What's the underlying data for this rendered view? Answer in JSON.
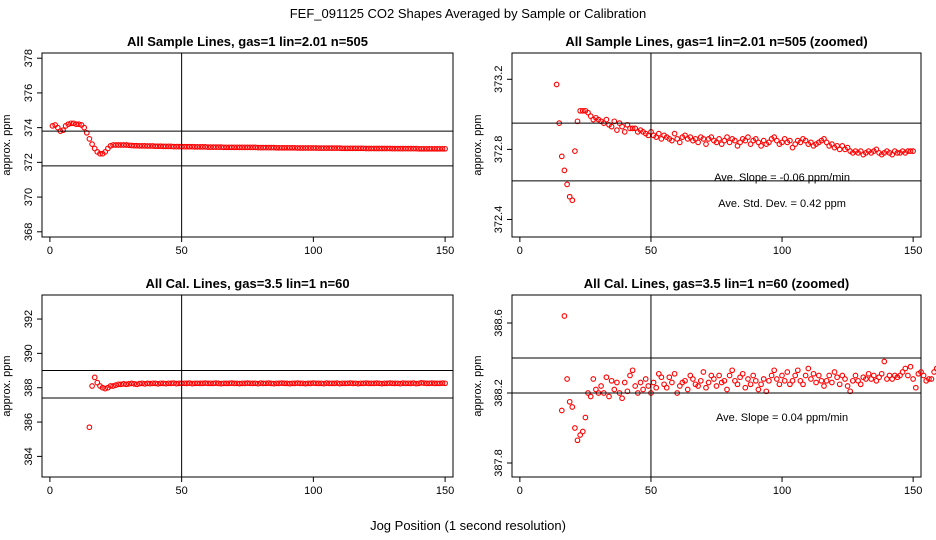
{
  "page": {
    "title": "FEF_091125  CO2 Shapes Averaged by Sample or Calibration",
    "xlabel": "Jog Position (1 second resolution)"
  },
  "colors": {
    "points": "#ff0000",
    "lines": "#000000"
  },
  "chart_data": [
    {
      "type": "scatter",
      "title": "All Sample Lines, gas=1 lin=2.01 n=505",
      "ylabel": "approx. ppm",
      "xlim": [
        -3,
        153
      ],
      "ylim": [
        367.7,
        378.3
      ],
      "x_ticks": [
        0,
        50,
        100,
        150
      ],
      "x_tick_labels": [
        "0",
        "50",
        "100",
        "150"
      ],
      "y_ticks": [
        368,
        370,
        372,
        374,
        376,
        378
      ],
      "y_tick_labels": [
        "368",
        "370",
        "372",
        "374",
        "376",
        "378"
      ],
      "vline_x": 50,
      "hlines_y": [
        373.8,
        371.8
      ],
      "annotations": [],
      "points": {
        "x_start": 1,
        "values": [
          374.1,
          374.15,
          374.0,
          373.8,
          373.85,
          374.1,
          374.2,
          374.25,
          374.25,
          374.2,
          374.2,
          374.15,
          374.0,
          373.7,
          373.35,
          373.05,
          372.8,
          372.6,
          372.5,
          372.5,
          372.6,
          372.8,
          372.95,
          373.0,
          373.0,
          373.0,
          373.0,
          373.0,
          373.0,
          372.98,
          372.97,
          372.96,
          372.96,
          372.95,
          372.95,
          372.95,
          372.94,
          372.94,
          372.94,
          372.93,
          372.93,
          372.93,
          372.92,
          372.92,
          372.92,
          372.92,
          372.91,
          372.91,
          372.91,
          372.91,
          372.9,
          372.9,
          372.9,
          372.9,
          372.89,
          372.89,
          372.89,
          372.89,
          372.89,
          372.88,
          372.88,
          372.88,
          372.88,
          372.88,
          372.88,
          372.87,
          372.87,
          372.87,
          372.87,
          372.87,
          372.87,
          372.86,
          372.86,
          372.86,
          372.86,
          372.86,
          372.86,
          372.86,
          372.85,
          372.85,
          372.85,
          372.85,
          372.85,
          372.85,
          372.85,
          372.84,
          372.84,
          372.84,
          372.84,
          372.84,
          372.84,
          372.84,
          372.84,
          372.83,
          372.83,
          372.83,
          372.83,
          372.83,
          372.83,
          372.83,
          372.83,
          372.82,
          372.82,
          372.82,
          372.82,
          372.82,
          372.82,
          372.82,
          372.82,
          372.82,
          372.81,
          372.81,
          372.81,
          372.81,
          372.81,
          372.81,
          372.81,
          372.81,
          372.81,
          372.8,
          372.8,
          372.8,
          372.8,
          372.8,
          372.8,
          372.8,
          372.8,
          372.8,
          372.8,
          372.79,
          372.79,
          372.79,
          372.79,
          372.79,
          372.79,
          372.79,
          372.79,
          372.79,
          372.79,
          372.78,
          372.78,
          372.78,
          372.78,
          372.78,
          372.78,
          372.78,
          372.78,
          372.78,
          372.78,
          372.78
        ]
      }
    },
    {
      "type": "scatter",
      "title": "All Sample Lines, gas=1 lin=2.01 n=505 (zoomed)",
      "ylabel": "approx. ppm",
      "xlim": [
        -3,
        153
      ],
      "ylim": [
        372.3,
        373.35
      ],
      "x_ticks": [
        0,
        50,
        100,
        150
      ],
      "x_tick_labels": [
        "0",
        "50",
        "100",
        "150"
      ],
      "y_ticks": [
        372.4,
        372.8,
        373.2
      ],
      "y_tick_labels": [
        "372.4",
        "372.8",
        "373.2"
      ],
      "vline_x": 50,
      "hlines_y": [
        372.95,
        372.62
      ],
      "annotations": [
        {
          "text": "Ave. Slope =  -0.06  ppm/min",
          "x": 100,
          "y": 372.62
        },
        {
          "text": "Ave. Std. Dev. =  0.42  ppm",
          "x": 100,
          "y": 372.47
        }
      ],
      "points": {
        "x_start": 14,
        "values": [
          373.17,
          372.95,
          372.76,
          372.68,
          372.6,
          372.53,
          372.51,
          372.79,
          372.96,
          373.02,
          373.02,
          373.02,
          373.01,
          372.99,
          372.97,
          372.98,
          372.97,
          372.96,
          372.95,
          372.97,
          372.94,
          372.93,
          372.96,
          372.91,
          372.95,
          372.93,
          372.9,
          372.94,
          372.92,
          372.92,
          372.92,
          372.9,
          372.91,
          372.9,
          372.89,
          372.88,
          372.9,
          372.88,
          372.87,
          372.89,
          372.86,
          372.88,
          372.87,
          372.86,
          372.85,
          372.89,
          372.86,
          372.84,
          372.87,
          372.88,
          372.86,
          372.87,
          372.85,
          372.86,
          372.84,
          372.87,
          372.86,
          372.83,
          372.86,
          372.87,
          372.85,
          372.84,
          372.86,
          372.83,
          372.85,
          372.87,
          372.84,
          372.86,
          372.85,
          372.82,
          372.84,
          372.86,
          372.85,
          372.87,
          372.83,
          372.85,
          372.86,
          372.84,
          372.82,
          372.85,
          372.83,
          372.84,
          372.86,
          372.87,
          372.85,
          372.83,
          372.84,
          372.86,
          372.84,
          372.85,
          372.81,
          372.83,
          372.85,
          372.84,
          372.86,
          372.85,
          372.83,
          372.84,
          372.82,
          372.83,
          372.84,
          372.85,
          372.86,
          372.84,
          372.82,
          372.83,
          372.81,
          372.82,
          372.8,
          372.82,
          372.8,
          372.81,
          372.79,
          372.78,
          372.79,
          372.78,
          372.79,
          372.77,
          372.78,
          372.79,
          372.78,
          372.79,
          372.8,
          372.78,
          372.77,
          372.78,
          372.79,
          372.78,
          372.77,
          372.79,
          372.78,
          372.78,
          372.79,
          372.78,
          372.79,
          372.79,
          372.79
        ]
      }
    },
    {
      "type": "scatter",
      "title": "All Cal. Lines, gas=3.5 lin=1 n=60",
      "ylabel": "approx. ppm",
      "xlim": [
        -3,
        153
      ],
      "ylim": [
        382.8,
        393.4
      ],
      "x_ticks": [
        0,
        50,
        100,
        150
      ],
      "x_tick_labels": [
        "0",
        "50",
        "100",
        "150"
      ],
      "y_ticks": [
        384,
        386,
        388,
        390,
        392
      ],
      "y_tick_labels": [
        "384",
        "386",
        "388",
        "390",
        "392"
      ],
      "vline_x": 50,
      "hlines_y": [
        389.0,
        387.4
      ],
      "annotations": [],
      "points": {
        "x_start": 14,
        "values": [
          382.85,
          385.7,
          388.1,
          388.6,
          388.3,
          388.1,
          388.0,
          387.95,
          388.0,
          388.1,
          388.1,
          388.15,
          388.2,
          388.2,
          388.22,
          388.2,
          388.22,
          388.25,
          388.22,
          388.2,
          388.24,
          388.25,
          388.22,
          388.25,
          388.24,
          388.26,
          388.25,
          388.23,
          388.26,
          388.25,
          388.24,
          388.26,
          388.25,
          388.27,
          388.24,
          388.26,
          388.25,
          388.26,
          388.25,
          388.27,
          388.24,
          388.26,
          388.26,
          388.25,
          388.26,
          388.27,
          388.25,
          388.26,
          388.25,
          388.27,
          388.25,
          388.24,
          388.26,
          388.25,
          388.26,
          388.27,
          388.25,
          388.26,
          388.24,
          388.26,
          388.25,
          388.27,
          388.26,
          388.25,
          388.26,
          388.24,
          388.27,
          388.25,
          388.26,
          388.27,
          388.25,
          388.24,
          388.26,
          388.25,
          388.27,
          388.26,
          388.25,
          388.24,
          388.26,
          388.25,
          388.27,
          388.25,
          388.26,
          388.24,
          388.26,
          388.25,
          388.27,
          388.26,
          388.25,
          388.26,
          388.24,
          388.27,
          388.25,
          388.26,
          388.25,
          388.27,
          388.24,
          388.26,
          388.25,
          388.26,
          388.27,
          388.25,
          388.26,
          388.24,
          388.26,
          388.25,
          388.27,
          388.25,
          388.26,
          388.25,
          388.27,
          388.26,
          388.24,
          388.26,
          388.25,
          388.27,
          388.26,
          388.25,
          388.26,
          388.24,
          388.27,
          388.25,
          388.26,
          388.25,
          388.27,
          388.24,
          388.26,
          388.28,
          388.27,
          388.25,
          388.26,
          388.27,
          388.25,
          388.26,
          388.25,
          388.27,
          388.26
        ]
      }
    },
    {
      "type": "scatter",
      "title": "All Cal. Lines, gas=3.5 lin=1 n=60 (zoomed)",
      "ylabel": "approx. ppm",
      "xlim": [
        -3,
        153
      ],
      "ylim": [
        387.72,
        388.76
      ],
      "x_ticks": [
        0,
        50,
        100,
        150
      ],
      "x_tick_labels": [
        "0",
        "50",
        "100",
        "150"
      ],
      "y_ticks": [
        387.8,
        388.2,
        388.6
      ],
      "y_tick_labels": [
        "387.8",
        "388.2",
        "388.6"
      ],
      "vline_x": 50,
      "hlines_y": [
        388.4,
        388.2
      ],
      "annotations": [
        {
          "text": "Ave. Slope =  0.04  ppm/min",
          "x": 100,
          "y": 388.04
        }
      ],
      "points": {
        "x_start": 16,
        "values": [
          388.1,
          388.64,
          388.28,
          388.15,
          388.12,
          388.0,
          387.93,
          387.96,
          387.98,
          388.06,
          388.2,
          388.18,
          388.28,
          388.22,
          388.2,
          388.24,
          388.2,
          388.29,
          388.18,
          388.27,
          388.22,
          388.26,
          388.2,
          388.17,
          388.26,
          388.21,
          388.3,
          388.33,
          388.24,
          388.2,
          388.26,
          388.22,
          388.28,
          388.24,
          388.2,
          388.26,
          388.23,
          388.31,
          388.29,
          388.25,
          388.23,
          388.29,
          388.26,
          388.31,
          388.2,
          388.24,
          388.26,
          388.27,
          388.22,
          388.3,
          388.28,
          388.25,
          388.24,
          388.27,
          388.32,
          388.23,
          388.26,
          388.3,
          388.28,
          388.24,
          388.3,
          388.26,
          388.27,
          388.22,
          388.3,
          388.33,
          388.27,
          388.25,
          388.29,
          388.31,
          388.23,
          388.28,
          388.25,
          388.3,
          388.27,
          388.22,
          388.25,
          388.28,
          388.21,
          388.27,
          388.3,
          388.33,
          388.28,
          388.25,
          388.3,
          388.27,
          388.32,
          388.25,
          388.27,
          388.3,
          388.33,
          388.27,
          388.25,
          388.3,
          388.34,
          388.28,
          388.31,
          388.26,
          388.3,
          388.27,
          388.24,
          388.27,
          388.3,
          388.26,
          388.32,
          388.29,
          388.25,
          388.3,
          388.28,
          388.24,
          388.21,
          388.27,
          388.3,
          388.27,
          388.25,
          388.29,
          388.28,
          388.31,
          388.28,
          388.3,
          388.27,
          388.29,
          388.31,
          388.38,
          388.28,
          388.3,
          388.28,
          388.3,
          388.29,
          388.3,
          388.32,
          388.34,
          388.3,
          388.35,
          388.28,
          388.23,
          388.31,
          388.32,
          388.3,
          388.27,
          388.28,
          388.28,
          388.32,
          388.34,
          388.33
        ]
      }
    }
  ]
}
